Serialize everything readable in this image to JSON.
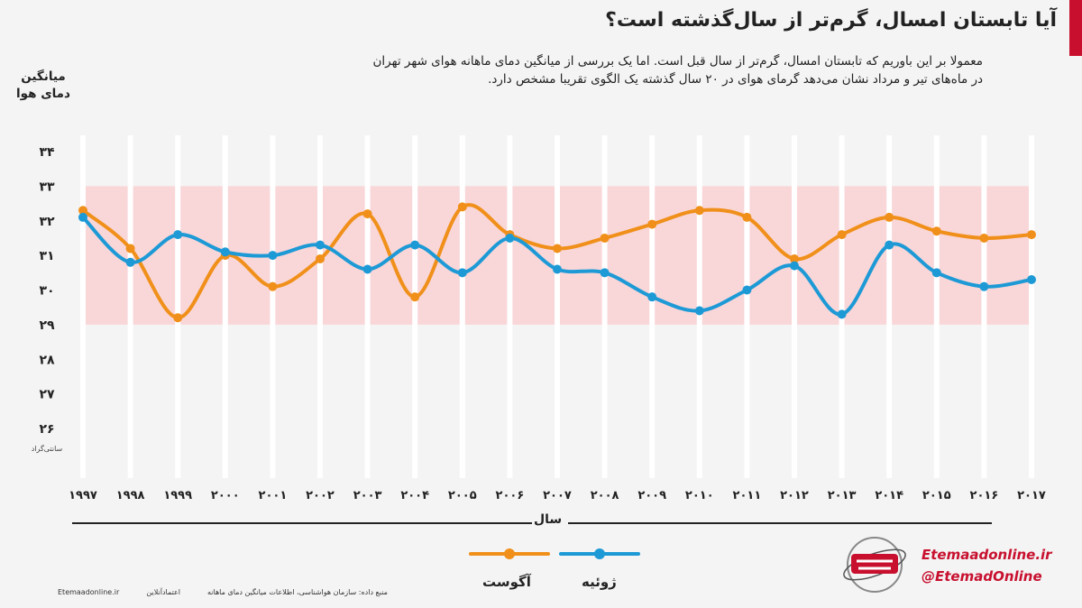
{
  "header": {
    "title": "آیا تابستان امسال، گرم‌تر از سال‌گذشته است؟",
    "description_line1": "معمولا بر این باوریم که تابستان امسال، گرم‌تر از سال قبل است. اما یک بررسی از میانگین دمای ماهانه هوای شهر تهران",
    "description_line2": "در ماه‌های تیر و مرداد نشان می‌دهد گرمای هوای در ۲۰ سال گذشته یک الگوی تقریبا مشخص دارد."
  },
  "colors": {
    "august": "#f0901a",
    "july": "#1d9ad6",
    "band": "#f9d6d8",
    "accent": "#c8102e"
  },
  "chart_data": {
    "type": "line",
    "ylabel": "میانگین دمای هوا",
    "unit": "سانتی‌گراد",
    "xlabel": "سال",
    "ylim": [
      25.5,
      34.5
    ],
    "yticks": [
      26,
      27,
      28,
      29,
      30,
      31,
      32,
      33,
      34
    ],
    "ytick_labels": [
      "۲۶",
      "۲۷",
      "۲۸",
      "۲۹",
      "۳۰",
      "۳۱",
      "۳۲",
      "۳۳",
      "۳۴"
    ],
    "band": [
      29,
      33
    ],
    "categories": [
      "1997",
      "1998",
      "1999",
      "2000",
      "2001",
      "2002",
      "2003",
      "2004",
      "2005",
      "2006",
      "2007",
      "2008",
      "2009",
      "2010",
      "2011",
      "2012",
      "2013",
      "2014",
      "2015",
      "2016",
      "2017"
    ],
    "category_labels": [
      "۱۹۹۷",
      "۱۹۹۸",
      "۱۹۹۹",
      "۲۰۰۰",
      "۲۰۰۱",
      "۲۰۰۲",
      "۲۰۰۳",
      "۲۰۰۴",
      "۲۰۰۵",
      "۲۰۰۶",
      "۲۰۰۷",
      "۲۰۰۸",
      "۲۰۰۹",
      "۲۰۱۰",
      "۲۰۱۱",
      "۲۰۱۲",
      "۲۰۱۳",
      "۲۰۱۴",
      "۲۰۱۵",
      "۲۰۱۶",
      "۲۰۱۷"
    ],
    "series": [
      {
        "name": "آگوست",
        "color": "#f0901a",
        "values": [
          32.3,
          31.2,
          29.2,
          31.0,
          30.1,
          30.9,
          32.2,
          29.8,
          32.4,
          31.6,
          31.2,
          31.5,
          31.9,
          32.3,
          32.1,
          30.9,
          31.6,
          32.1,
          31.7,
          31.5,
          31.6
        ]
      },
      {
        "name": "ژوئیه",
        "color": "#1d9ad6",
        "values": [
          32.1,
          30.8,
          31.6,
          31.1,
          31.0,
          31.3,
          30.6,
          31.3,
          30.5,
          31.5,
          30.6,
          30.5,
          29.8,
          29.4,
          30.0,
          30.7,
          29.3,
          31.3,
          30.5,
          30.1,
          30.3
        ]
      }
    ]
  },
  "legend": {
    "august_label": "آگوست",
    "july_label": "ژوئیه"
  },
  "footer": {
    "source": "منبع داده: سازمان هواشناسی، اطلاعات میانگین دمای ماهانه",
    "site_small": "Etemaadonline.ir",
    "brand_small": "اعتمادآنلاین",
    "site": "Etemaadonline.ir",
    "handle": "@EtemadOnline"
  }
}
